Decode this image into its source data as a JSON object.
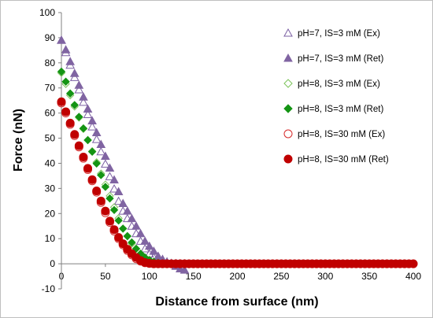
{
  "chart_data": {
    "type": "scatter",
    "xlabel": "Distance from surface (nm)",
    "ylabel": "Force (nN)",
    "xlim": [
      0,
      400
    ],
    "ylim": [
      -10,
      100
    ],
    "xticks": [
      0,
      50,
      100,
      150,
      200,
      250,
      300,
      350,
      400
    ],
    "yticks": [
      -10,
      0,
      10,
      20,
      30,
      40,
      50,
      60,
      70,
      80,
      90,
      100
    ],
    "grid": false,
    "legend_position": "top-right",
    "series": [
      {
        "name": "pH=7, IS=3 mM (Ex)",
        "marker": "triangle-open",
        "color": "#7b5fa3",
        "x": [
          0,
          5,
          10,
          15,
          20,
          25,
          30,
          35,
          40,
          45,
          50,
          55,
          60,
          65,
          70,
          75,
          80,
          85,
          90,
          95,
          100,
          105,
          110,
          115,
          120,
          125,
          130,
          135,
          140
        ],
        "y": [
          89,
          84.1,
          79.1,
          74.2,
          69.3,
          64.3,
          59.4,
          54.5,
          49.5,
          44.6,
          39.7,
          34.7,
          29.8,
          24.9,
          21.0,
          18.0,
          15.0,
          12.0,
          9.0,
          6.0,
          4.0,
          2.5,
          1.5,
          1.0,
          0.5,
          0.2,
          0.1,
          0,
          0
        ]
      },
      {
        "name": "pH=7, IS=3 mM (Ret)",
        "marker": "triangle-filled",
        "color": "#8064a2",
        "x": [
          0,
          5,
          10,
          15,
          20,
          25,
          30,
          35,
          40,
          45,
          50,
          55,
          60,
          65,
          70,
          75,
          80,
          85,
          90,
          95,
          100,
          105,
          110,
          115,
          120,
          125,
          130,
          135,
          140
        ],
        "y": [
          89,
          85.2,
          80.5,
          75.8,
          71.1,
          66.4,
          61.6,
          56.9,
          52.2,
          47.5,
          42.8,
          38.1,
          33.4,
          28.7,
          24.0,
          21.0,
          18.0,
          15.0,
          12.0,
          9.0,
          7.0,
          5.0,
          3.0,
          1.8,
          0.8,
          0,
          -1.0,
          -2.0,
          -2.5
        ]
      },
      {
        "name": "pH=8, IS=3 mM (Ex)",
        "marker": "diamond-open",
        "color": "#7cc35a",
        "x": [
          0,
          5,
          10,
          15,
          20,
          25,
          30,
          35,
          40,
          45,
          50,
          55,
          60,
          65,
          70,
          75,
          80,
          85,
          90,
          95,
          100,
          105,
          110,
          115,
          120,
          125,
          130
        ],
        "y": [
          76,
          71.6,
          67.1,
          62.6,
          58.2,
          53.7,
          49.3,
          44.8,
          40.4,
          35.9,
          31.5,
          27.0,
          22.5,
          18.1,
          14.0,
          11.0,
          8.0,
          6.0,
          4.0,
          2.5,
          1.5,
          0.8,
          0.3,
          0.1,
          0,
          0,
          0
        ]
      },
      {
        "name": "pH=8, IS=3 mM (Ret)",
        "marker": "diamond-filled",
        "color": "#149414",
        "x": [
          0,
          5,
          10,
          15,
          20,
          25,
          30,
          35,
          40,
          45,
          50,
          55,
          60,
          65,
          70,
          75,
          80,
          85,
          90,
          95,
          100,
          105,
          110,
          115,
          120,
          125,
          130
        ],
        "y": [
          76.5,
          72.5,
          67.8,
          63.2,
          58.5,
          53.9,
          49.2,
          44.6,
          39.9,
          35.3,
          30.6,
          26.0,
          21.4,
          17.2,
          14.0,
          11.0,
          8.5,
          6.0,
          4.0,
          2.5,
          1.5,
          0.8,
          0.4,
          0.2,
          0,
          0,
          0
        ]
      },
      {
        "name": "pH=8, IS=30 mM (Ex)",
        "marker": "circle-open",
        "color": "#d62b2b",
        "x": [
          0,
          5,
          10,
          15,
          20,
          25,
          30,
          35,
          40,
          45,
          50,
          55,
          60,
          65,
          70,
          75,
          80,
          85,
          90,
          95,
          100,
          105,
          110,
          115,
          120,
          125,
          130,
          135,
          140,
          145,
          150,
          155,
          160,
          165,
          170,
          175,
          180,
          185,
          190,
          195,
          200,
          205,
          210,
          215,
          220,
          225,
          230,
          235,
          240,
          245,
          250,
          255,
          260,
          265,
          270,
          275,
          280,
          285,
          290,
          295,
          300,
          305,
          310,
          315,
          320,
          325,
          330,
          335,
          340,
          345,
          350,
          355,
          360,
          365,
          370,
          375,
          380,
          385,
          390,
          395,
          400
        ],
        "y": [
          64,
          60,
          55.5,
          51,
          46.5,
          42,
          37.5,
          33,
          28.5,
          24.4,
          20.3,
          16.5,
          13,
          10,
          7.5,
          5.3,
          3.5,
          2.0,
          1.0,
          0.4,
          0.1,
          0,
          0,
          0,
          0,
          0,
          0,
          0,
          0,
          0,
          0,
          0,
          0,
          0,
          0,
          0,
          0,
          0,
          0,
          0,
          0,
          0,
          0,
          0,
          0,
          0,
          0,
          0,
          0,
          0,
          0,
          0,
          0,
          0,
          0,
          0,
          0,
          0,
          0,
          0,
          0,
          0,
          0,
          0,
          0,
          0,
          0,
          0,
          0,
          0,
          0,
          0,
          0,
          0,
          0,
          0,
          0,
          0,
          0,
          0,
          0
        ]
      },
      {
        "name": "pH=8, IS=30 mM (Ret)",
        "marker": "circle-filled",
        "color": "#c00000",
        "x": [
          0,
          5,
          10,
          15,
          20,
          25,
          30,
          35,
          40,
          45,
          50,
          55,
          60,
          65,
          70,
          75,
          80,
          85,
          90,
          95,
          100,
          105,
          110,
          115,
          120,
          125,
          130,
          135,
          140,
          145,
          150,
          155,
          160,
          165,
          170,
          175,
          180,
          185,
          190,
          195,
          200,
          205,
          210,
          215,
          220,
          225,
          230,
          235,
          240,
          245,
          250,
          255,
          260,
          265,
          270,
          275,
          280,
          285,
          290,
          295,
          300,
          305,
          310,
          315,
          320,
          325,
          330,
          335,
          340,
          345,
          350,
          355,
          360,
          365,
          370,
          375,
          380,
          385,
          390,
          395,
          400
        ],
        "y": [
          64.5,
          60.5,
          56,
          51.5,
          47,
          42.5,
          38,
          33.5,
          29,
          25,
          21,
          17,
          13.6,
          10.5,
          8,
          5.8,
          4,
          2.5,
          1.3,
          0.5,
          0.2,
          0,
          0,
          0,
          0,
          0,
          0,
          0,
          0,
          0,
          0,
          0,
          0,
          0,
          0,
          0,
          0,
          0,
          0,
          0,
          0,
          0,
          0,
          0,
          0,
          0,
          0,
          0,
          0,
          0,
          0,
          0,
          0,
          0,
          0,
          0,
          0,
          0,
          0,
          0,
          0,
          0,
          0,
          0,
          0,
          0,
          0,
          0,
          0,
          0,
          0,
          0,
          0,
          0,
          0,
          0,
          0,
          0,
          0,
          0,
          0
        ]
      }
    ]
  }
}
